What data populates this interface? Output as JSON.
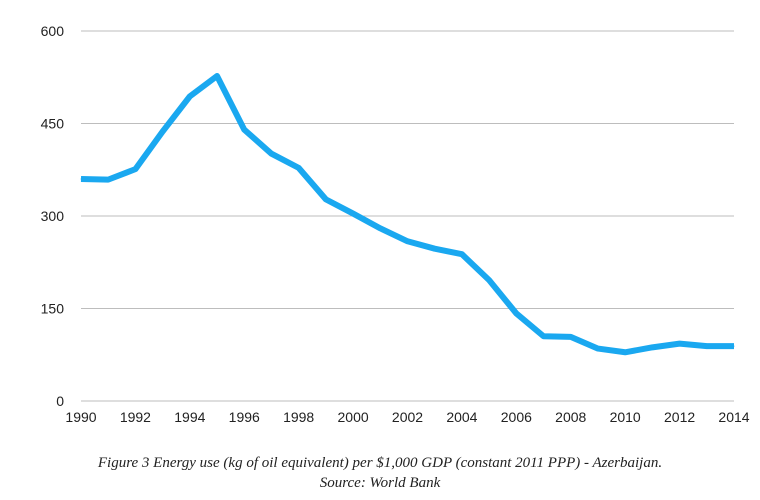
{
  "chart_data": {
    "type": "line",
    "title": "",
    "xlabel": "",
    "ylabel": "",
    "xlim": [
      1990,
      2014
    ],
    "ylim": [
      0,
      600
    ],
    "grid": true,
    "line_color": "#1aa8f0",
    "grid_color": "#bdbdbd",
    "yticks": [
      "0",
      "150",
      "300",
      "450",
      "600"
    ],
    "xticks": [
      "1990",
      "1992",
      "1994",
      "1996",
      "1998",
      "2000",
      "2002",
      "2004",
      "2006",
      "2008",
      "2010",
      "2012",
      "2014"
    ],
    "series": [
      {
        "x": [
          1990,
          1991,
          1992,
          1993,
          1994,
          1995,
          1996,
          1997,
          1998,
          1999,
          2000,
          2001,
          2002,
          2003,
          2004,
          2005,
          2006,
          2007,
          2008,
          2009,
          2010,
          2011,
          2012,
          2013,
          2014
        ],
        "values": [
          360,
          359,
          376,
          437,
          494,
          527,
          440,
          401,
          378,
          327,
          304,
          280,
          259,
          247,
          238,
          196,
          142,
          105,
          104,
          85,
          79,
          87,
          93,
          89,
          89
        ]
      }
    ]
  },
  "caption": {
    "line1": "Figure 3 Energy use (kg of oil equivalent) per $1,000 GDP (constant 2011 PPP) - Azerbaijan.",
    "line2": "Source: World Bank"
  }
}
